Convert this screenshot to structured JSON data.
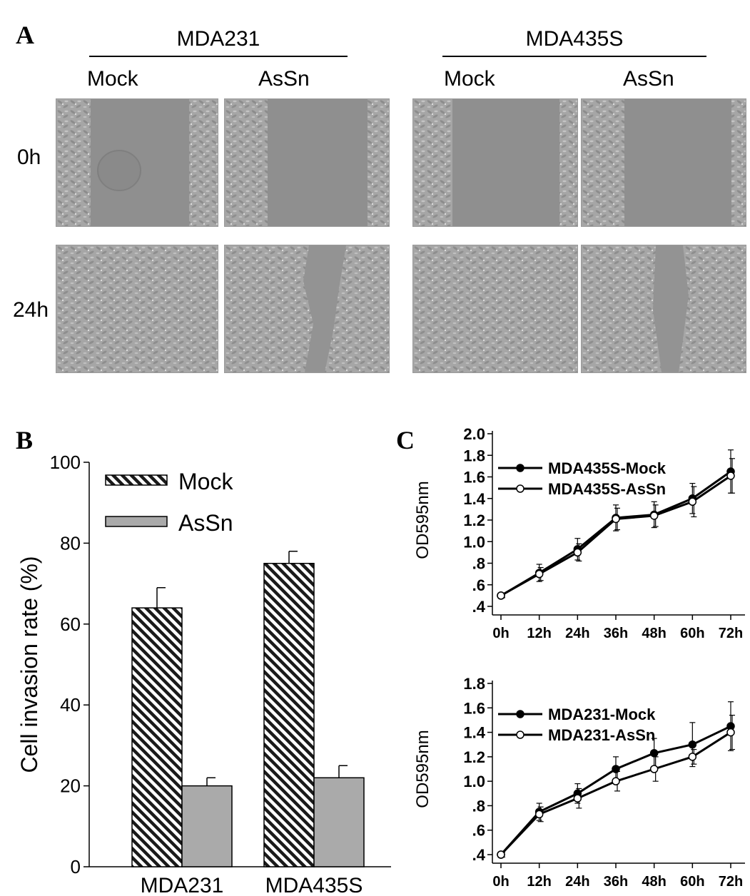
{
  "panels": {
    "a": "A",
    "b": "B",
    "c": "C"
  },
  "panel_a": {
    "groups": [
      "MDA231",
      "MDA435S"
    ],
    "conditions": [
      "Mock",
      "AsSn"
    ],
    "timepoints": [
      "0h",
      "24h"
    ],
    "wound_gap_fraction": [
      [
        [
          0.56,
          0.62
        ],
        [
          0.62,
          0.6
        ]
      ],
      [
        [
          0.0,
          0.3
        ],
        [
          0.0,
          0.18
        ]
      ]
    ]
  },
  "chart_data": [
    {
      "type": "bar",
      "categories": [
        "MDA231",
        "MDA435S"
      ],
      "series": [
        {
          "name": "Mock",
          "values": [
            64,
            75
          ],
          "errors": [
            5,
            3
          ],
          "pattern": "hatch"
        },
        {
          "name": "AsSn",
          "values": [
            20,
            22
          ],
          "errors": [
            2,
            3
          ],
          "pattern": "gray"
        }
      ],
      "ylabel": "Cell invasion rate (%)",
      "ylim": [
        0,
        100
      ],
      "yticks": [
        "0",
        "20",
        "40",
        "60",
        "80",
        "100"
      ],
      "legend": "top-left"
    },
    {
      "type": "line",
      "x": [
        "0h",
        "12h",
        "24h",
        "36h",
        "48h",
        "60h",
        "72h"
      ],
      "series": [
        {
          "name": "MDA435S-Mock",
          "marker": "filled",
          "values": [
            0.5,
            0.71,
            0.93,
            1.22,
            1.25,
            1.4,
            1.65
          ],
          "errors": [
            0.02,
            0.08,
            0.1,
            0.12,
            0.12,
            0.14,
            0.2
          ]
        },
        {
          "name": "MDA435S-AsSn",
          "marker": "open",
          "values": [
            0.5,
            0.7,
            0.9,
            1.21,
            1.24,
            1.37,
            1.61
          ],
          "errors": [
            0.02,
            0.06,
            0.08,
            0.1,
            0.1,
            0.14,
            0.16
          ]
        }
      ],
      "ylabel": "OD595nm",
      "ylim": [
        0.4,
        2.0
      ],
      "yticks": [
        ".4",
        ".6",
        ".8",
        "1.0",
        "1.2",
        "1.4",
        "1.6",
        "1.8",
        "2.0"
      ],
      "legend": "top-left"
    },
    {
      "type": "line",
      "x": [
        "0h",
        "12h",
        "24h",
        "36h",
        "48h",
        "60h",
        "72h"
      ],
      "series": [
        {
          "name": "MDA231-Mock",
          "marker": "filled",
          "values": [
            0.4,
            0.75,
            0.9,
            1.1,
            1.23,
            1.3,
            1.45
          ],
          "errors": [
            0.02,
            0.07,
            0.08,
            0.1,
            0.12,
            0.18,
            0.2
          ]
        },
        {
          "name": "MDA231-AsSn",
          "marker": "open",
          "values": [
            0.4,
            0.73,
            0.86,
            1.0,
            1.1,
            1.2,
            1.4
          ],
          "errors": [
            0.02,
            0.06,
            0.08,
            0.08,
            0.1,
            0.06,
            0.14
          ]
        }
      ],
      "ylabel": "OD595nm",
      "ylim": [
        0.4,
        1.8
      ],
      "yticks": [
        ".4",
        ".6",
        ".8",
        "1.0",
        "1.2",
        "1.4",
        "1.6",
        "1.8"
      ],
      "legend": "top-left"
    }
  ]
}
